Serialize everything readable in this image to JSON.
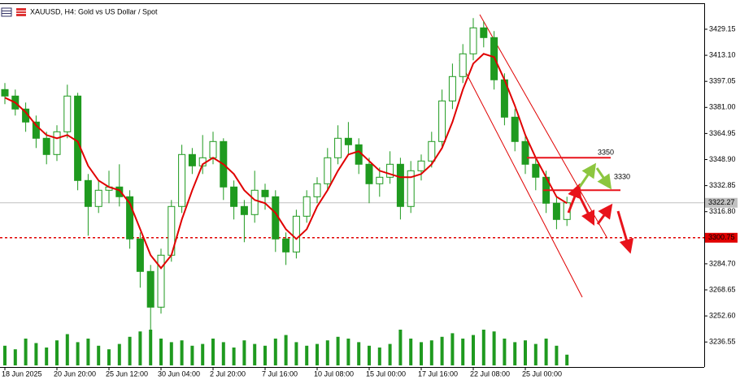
{
  "chart_data": {
    "type": "candlestick",
    "title": "XAUUSD, H4:  Gold vs US Dollar / Spot",
    "color": "#1f9a1f",
    "categories": [
      "18 Jun 2025",
      null,
      null,
      null,
      null,
      "20 Jun 20:00",
      null,
      null,
      null,
      null,
      "25 Jun 12:00",
      null,
      null,
      null,
      null,
      "30 Jun 04:00",
      null,
      null,
      null,
      null,
      "2 Jul 20:00",
      null,
      null,
      null,
      null,
      "7 Jul 16:00",
      null,
      null,
      null,
      null,
      "10 Jul 08:00",
      null,
      null,
      null,
      null,
      "15 Jul 00:00",
      null,
      null,
      null,
      null,
      "17 Jul 16:00",
      null,
      null,
      null,
      null,
      "22 Jul 08:00",
      null,
      null,
      null,
      null,
      "25 Jul 00:00",
      null,
      null,
      null,
      null
    ],
    "open": [
      3392,
      3388,
      3380,
      3372,
      3362,
      3352,
      3366,
      3388,
      3336,
      3320,
      3330,
      3332,
      3326,
      3300,
      3280,
      3258,
      3290,
      3320,
      3352,
      3345,
      3350,
      3360,
      3332,
      3320,
      3315,
      3330,
      3326,
      3300,
      3292,
      3314,
      3326,
      3334,
      3350,
      3362,
      3358,
      3346,
      3334,
      3338,
      3346,
      3320,
      3342,
      3348,
      3360,
      3385,
      3400,
      3414,
      3430,
      3424,
      3398,
      3375,
      3360,
      3346,
      3338,
      3322,
      3312
    ],
    "high": [
      3396,
      3392,
      3384,
      3376,
      3366,
      3370,
      3395,
      3390,
      3340,
      3336,
      3342,
      3346,
      3330,
      3304,
      3284,
      3294,
      3324,
      3358,
      3356,
      3364,
      3366,
      3362,
      3336,
      3324,
      3342,
      3334,
      3330,
      3304,
      3318,
      3330,
      3338,
      3356,
      3370,
      3372,
      3362,
      3350,
      3344,
      3354,
      3350,
      3348,
      3352,
      3366,
      3392,
      3408,
      3420,
      3436,
      3434,
      3428,
      3402,
      3380,
      3364,
      3350,
      3342,
      3326,
      3326
    ],
    "low": [
      3383,
      3376,
      3366,
      3356,
      3346,
      3348,
      3362,
      3330,
      3302,
      3316,
      3322,
      3320,
      3294,
      3270,
      3244,
      3254,
      3286,
      3316,
      3340,
      3340,
      3346,
      3324,
      3312,
      3298,
      3310,
      3318,
      3292,
      3284,
      3288,
      3310,
      3322,
      3330,
      3346,
      3352,
      3340,
      3322,
      3326,
      3334,
      3312,
      3316,
      3336,
      3344,
      3356,
      3380,
      3396,
      3410,
      3418,
      3392,
      3370,
      3354,
      3340,
      3330,
      3316,
      3306,
      3308
    ],
    "close": [
      3388,
      3380,
      3372,
      3362,
      3352,
      3366,
      3388,
      3336,
      3320,
      3330,
      3332,
      3326,
      3300,
      3280,
      3258,
      3290,
      3320,
      3352,
      3345,
      3350,
      3360,
      3332,
      3320,
      3315,
      3330,
      3326,
      3300,
      3292,
      3314,
      3326,
      3334,
      3350,
      3362,
      3358,
      3346,
      3334,
      3338,
      3346,
      3320,
      3342,
      3348,
      3360,
      3385,
      3400,
      3414,
      3430,
      3424,
      3398,
      3375,
      3360,
      3346,
      3338,
      3322,
      3312,
      3322.27
    ],
    "ma": {
      "color": "#e00000",
      "values": [
        3387,
        3384,
        3378,
        3370,
        3364,
        3362,
        3364,
        3360,
        3345,
        3336,
        3332,
        3330,
        3322,
        3306,
        3290,
        3282,
        3290,
        3312,
        3330,
        3346,
        3350,
        3346,
        3340,
        3330,
        3324,
        3322,
        3316,
        3306,
        3300,
        3306,
        3320,
        3330,
        3342,
        3352,
        3354,
        3348,
        3342,
        3340,
        3338,
        3338,
        3340,
        3346,
        3356,
        3372,
        3392,
        3408,
        3414,
        3412,
        3398,
        3382,
        3364,
        3350,
        3338,
        3326,
        3322
      ]
    },
    "volume": [
      22,
      18,
      30,
      25,
      20,
      28,
      35,
      26,
      30,
      22,
      18,
      24,
      32,
      38,
      40,
      30,
      26,
      28,
      22,
      24,
      30,
      26,
      20,
      28,
      24,
      22,
      30,
      34,
      26,
      22,
      24,
      28,
      32,
      30,
      26,
      22,
      20,
      24,
      40,
      30,
      26,
      28,
      32,
      36,
      30,
      34,
      40,
      38,
      30,
      26,
      28,
      24,
      30,
      22,
      12
    ],
    "ylim": [
      3222.15,
      3444.65
    ],
    "yticks": [
      3429.15,
      {
        "value": 3413.1,
        "label": "3413.10"
      },
      3397.05,
      {
        "value": 3381.0,
        "label": "3381.00"
      },
      3364.95,
      {
        "value": 3348.9,
        "label": "3348.90"
      },
      3332.85,
      {
        "value": 3316.8,
        "label": "3316.80"
      },
      {
        "value": 3284.7,
        "label": "3284.70"
      },
      3268.65,
      {
        "value": 3252.6,
        "label": "3252.60"
      },
      3236.55
    ],
    "current_price": 3322.27,
    "support": {
      "value": 3300.75,
      "color": "#e00000"
    },
    "levels": [
      {
        "value": 3350,
        "label": "3350"
      },
      {
        "value": 3330,
        "label": "3330"
      }
    ],
    "level_color": "#f05a28"
  }
}
